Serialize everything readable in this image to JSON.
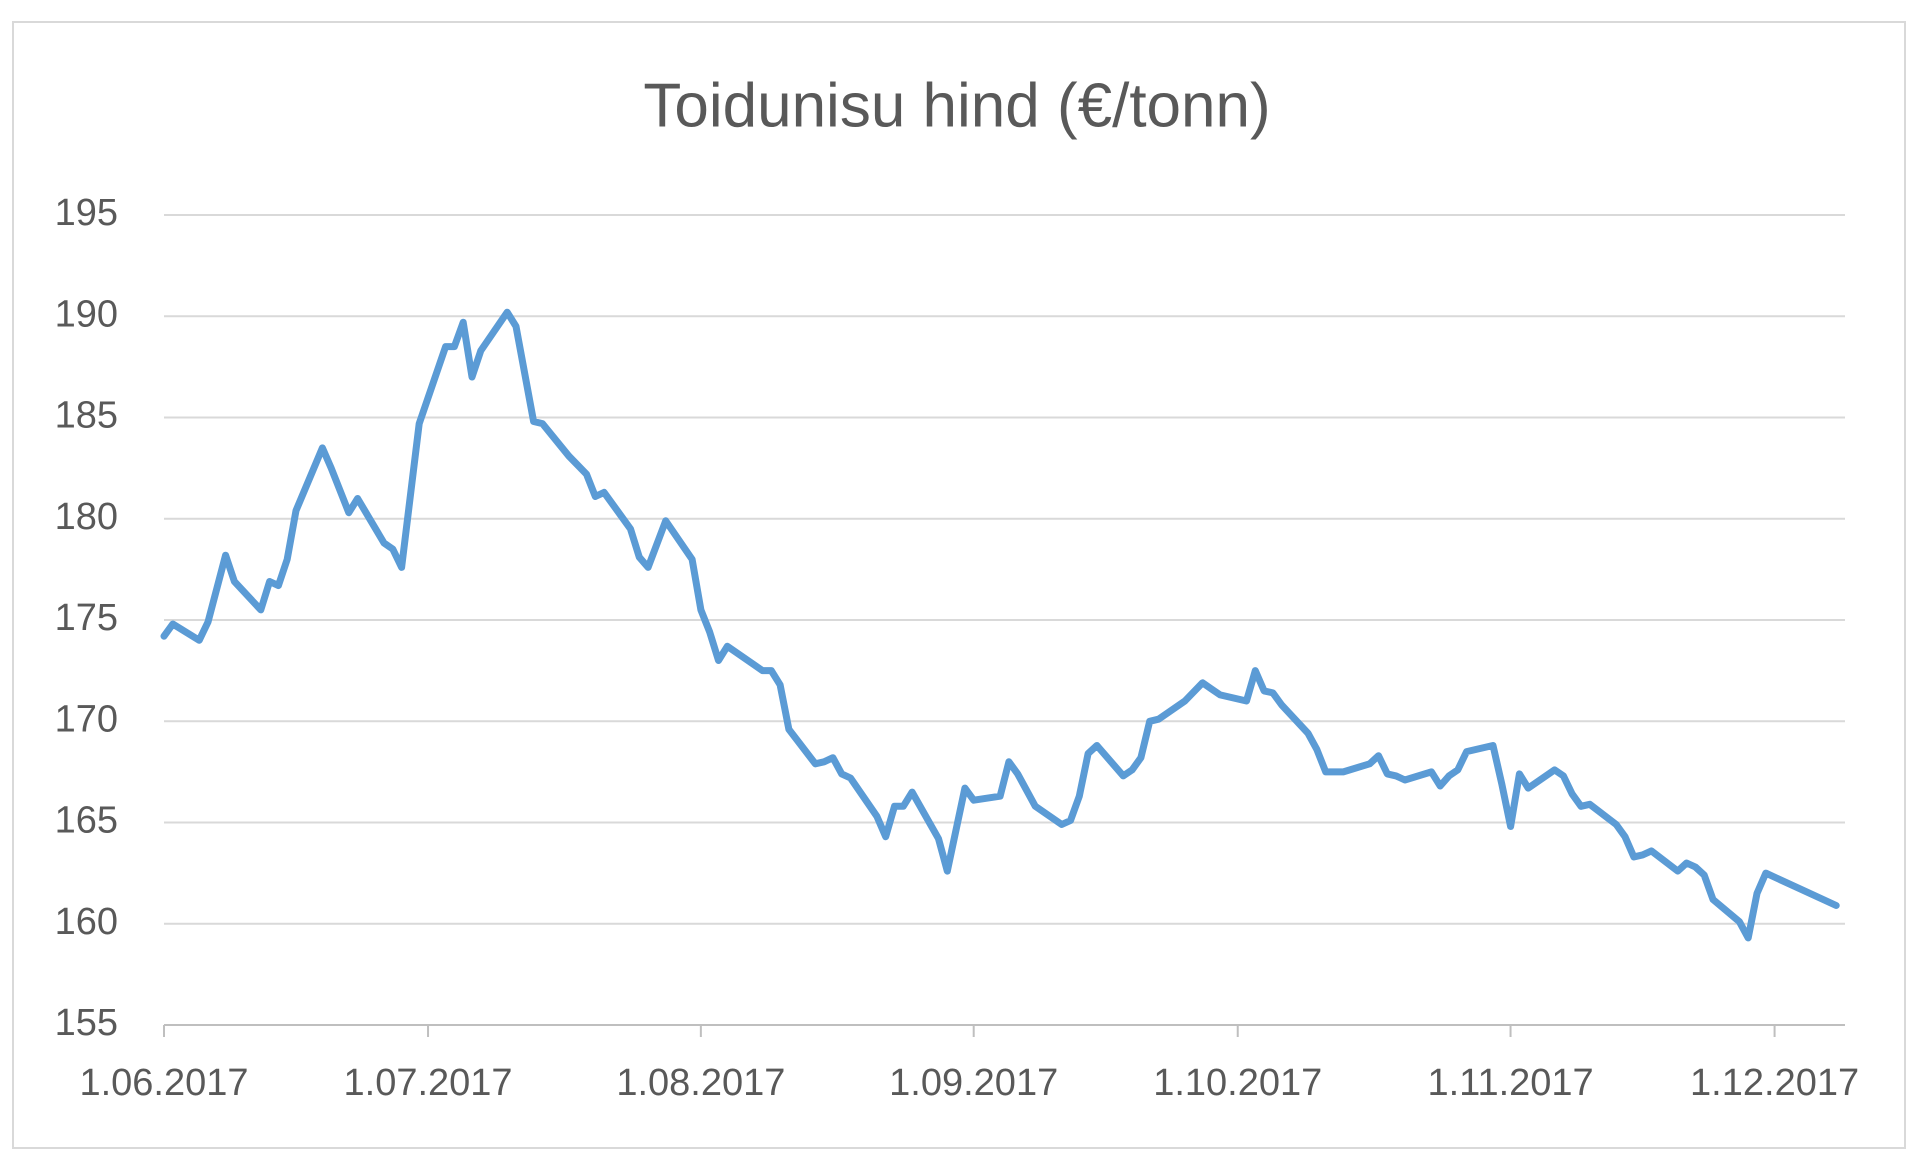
{
  "chart_data": {
    "type": "line",
    "title": "Toidunisu hind (€/tonn)",
    "color": "#5b9bd5",
    "grid": true,
    "xlim": [
      "2017-06-01",
      "2017-12-09"
    ],
    "xticks": [
      {
        "value": "2017-06-01",
        "label": "1.06.2017"
      },
      {
        "value": "2017-07-01",
        "label": "1.07.2017"
      },
      {
        "value": "2017-08-01",
        "label": "1.08.2017"
      },
      {
        "value": "2017-09-01",
        "label": "1.09.2017"
      },
      {
        "value": "2017-10-01",
        "label": "1.10.2017"
      },
      {
        "value": "2017-11-01",
        "label": "1.11.2017"
      },
      {
        "value": "2017-12-01",
        "label": "1.12.2017"
      }
    ],
    "ylim": [
      155,
      195
    ],
    "yticks": [
      155,
      160,
      165,
      170,
      175,
      180,
      185,
      190,
      195
    ],
    "x": [
      "2017-06-01",
      "2017-06-02",
      "2017-06-05",
      "2017-06-06",
      "2017-06-08",
      "2017-06-09",
      "2017-06-12",
      "2017-06-13",
      "2017-06-14",
      "2017-06-15",
      "2017-06-16",
      "2017-06-19",
      "2017-06-20",
      "2017-06-22",
      "2017-06-23",
      "2017-06-26",
      "2017-06-27",
      "2017-06-28",
      "2017-06-30",
      "2017-07-03",
      "2017-07-04",
      "2017-07-05",
      "2017-07-06",
      "2017-07-07",
      "2017-07-10",
      "2017-07-11",
      "2017-07-13",
      "2017-07-14",
      "2017-07-17",
      "2017-07-19",
      "2017-07-20",
      "2017-07-21",
      "2017-07-24",
      "2017-07-25",
      "2017-07-26",
      "2017-07-28",
      "2017-07-31",
      "2017-08-01",
      "2017-08-02",
      "2017-08-03",
      "2017-08-04",
      "2017-08-07",
      "2017-08-08",
      "2017-08-09",
      "2017-08-10",
      "2017-08-11",
      "2017-08-14",
      "2017-08-15",
      "2017-08-16",
      "2017-08-17",
      "2017-08-18",
      "2017-08-21",
      "2017-08-22",
      "2017-08-23",
      "2017-08-24",
      "2017-08-25",
      "2017-08-28",
      "2017-08-29",
      "2017-08-31",
      "2017-09-01",
      "2017-09-04",
      "2017-09-05",
      "2017-09-06",
      "2017-09-08",
      "2017-09-11",
      "2017-09-12",
      "2017-09-13",
      "2017-09-14",
      "2017-09-15",
      "2017-09-18",
      "2017-09-19",
      "2017-09-20",
      "2017-09-21",
      "2017-09-22",
      "2017-09-25",
      "2017-09-27",
      "2017-09-28",
      "2017-09-29",
      "2017-10-02",
      "2017-10-03",
      "2017-10-04",
      "2017-10-05",
      "2017-10-06",
      "2017-10-09",
      "2017-10-10",
      "2017-10-11",
      "2017-10-13",
      "2017-10-16",
      "2017-10-17",
      "2017-10-18",
      "2017-10-19",
      "2017-10-20",
      "2017-10-23",
      "2017-10-24",
      "2017-10-25",
      "2017-10-26",
      "2017-10-27",
      "2017-10-30",
      "2017-10-31",
      "2017-11-01",
      "2017-11-02",
      "2017-11-03",
      "2017-11-06",
      "2017-11-07",
      "2017-11-08",
      "2017-11-09",
      "2017-11-10",
      "2017-11-13",
      "2017-11-14",
      "2017-11-15",
      "2017-11-16",
      "2017-11-17",
      "2017-11-20",
      "2017-11-21",
      "2017-11-22",
      "2017-11-23",
      "2017-11-24",
      "2017-11-27",
      "2017-11-28",
      "2017-11-29",
      "2017-11-30",
      "2017-12-08"
    ],
    "values": [
      174.2,
      174.8,
      174.0,
      174.9,
      178.2,
      176.9,
      175.5,
      176.9,
      176.7,
      178.0,
      180.4,
      183.5,
      182.5,
      180.3,
      181.0,
      178.8,
      178.5,
      177.6,
      184.7,
      188.5,
      188.5,
      189.7,
      187.0,
      188.3,
      190.2,
      189.5,
      184.8,
      184.7,
      183.1,
      182.2,
      181.1,
      181.3,
      179.5,
      178.1,
      177.6,
      179.9,
      178.0,
      175.5,
      174.4,
      173.0,
      173.7,
      172.8,
      172.5,
      172.5,
      171.8,
      169.6,
      167.9,
      168.0,
      168.2,
      167.4,
      167.2,
      165.3,
      164.3,
      165.8,
      165.8,
      166.5,
      164.2,
      162.6,
      166.7,
      166.1,
      166.3,
      168.0,
      167.4,
      165.8,
      164.9,
      165.1,
      166.3,
      168.4,
      168.8,
      167.3,
      167.6,
      168.2,
      170.0,
      170.1,
      171.0,
      171.9,
      171.6,
      171.3,
      171.0,
      172.5,
      171.5,
      171.4,
      170.8,
      169.4,
      168.6,
      167.5,
      167.5,
      167.9,
      168.3,
      167.4,
      167.3,
      167.1,
      167.5,
      166.8,
      167.3,
      167.6,
      168.5,
      168.8,
      166.9,
      164.8,
      167.4,
      166.7,
      167.6,
      167.3,
      166.4,
      165.8,
      165.9,
      164.9,
      164.3,
      163.3,
      163.4,
      163.6,
      162.6,
      163.0,
      162.8,
      162.4,
      161.2,
      160.1,
      159.3,
      161.5,
      162.5,
      160.9
    ]
  }
}
